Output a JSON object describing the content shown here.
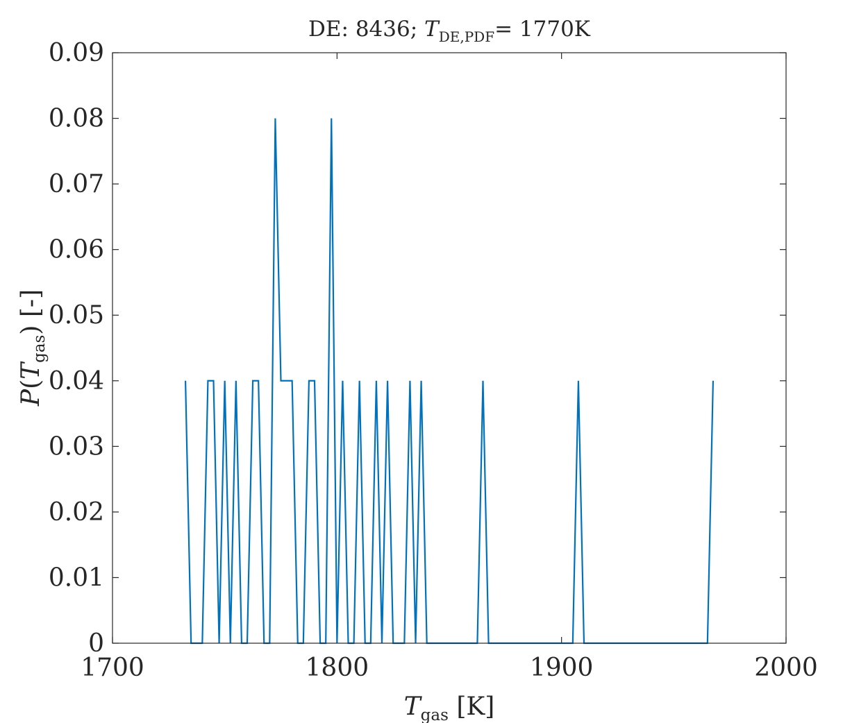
{
  "chart_data": {
    "type": "line",
    "title_parts": {
      "prefix": "DE: 8436; ",
      "var": "T",
      "sub": "DE,PDF",
      "suffix": "= 1770K"
    },
    "xlabel_parts": {
      "var": "T",
      "sub": "gas",
      "unit": " [K]"
    },
    "ylabel_parts": {
      "prefix": "P(",
      "var": "T",
      "sub": "gas",
      "suffix": ") [-]"
    },
    "xlim": [
      1700,
      2000
    ],
    "ylim": [
      0,
      0.09
    ],
    "xticks": [
      1700,
      1800,
      1900,
      2000
    ],
    "xtick_labels": [
      "1700",
      "1800",
      "1900",
      "2000"
    ],
    "yticks": [
      0,
      0.01,
      0.02,
      0.03,
      0.04,
      0.05,
      0.06,
      0.07,
      0.08,
      0.09
    ],
    "ytick_labels": [
      "0",
      "0.01",
      "0.02",
      "0.03",
      "0.04",
      "0.05",
      "0.06",
      "0.07",
      "0.08",
      "0.09"
    ],
    "grid": false,
    "series": [
      {
        "color": "#0072BD",
        "x": [
          1732.5,
          1735,
          1740,
          1742.5,
          1745,
          1747.5,
          1750,
          1752.5,
          1755,
          1757.5,
          1760,
          1762.5,
          1765,
          1767.5,
          1770,
          1772.5,
          1775,
          1777.5,
          1780,
          1782.5,
          1785,
          1787.5,
          1790,
          1792.5,
          1795,
          1797.5,
          1800,
          1802.5,
          1805,
          1807.5,
          1810,
          1812.5,
          1815,
          1817.5,
          1820,
          1822.5,
          1825,
          1827.5,
          1830,
          1832.5,
          1835,
          1837.5,
          1840,
          1842.5,
          1845,
          1860,
          1862.5,
          1865,
          1867.5,
          1870,
          1905,
          1907.5,
          1910,
          1912.5,
          1962.5,
          1965,
          1967.5
        ],
        "y": [
          0.04,
          0,
          0,
          0.04,
          0.04,
          0,
          0.04,
          0,
          0.04,
          0,
          0,
          0.04,
          0.04,
          0,
          0,
          0.08,
          0.04,
          0.04,
          0.04,
          0,
          0,
          0.04,
          0.04,
          0,
          0,
          0.08,
          0,
          0.04,
          0,
          0,
          0.04,
          0,
          0,
          0.04,
          0,
          0.04,
          0,
          0,
          0,
          0.04,
          0,
          0.04,
          0,
          0,
          0,
          0,
          0,
          0.04,
          0,
          0,
          0,
          0.04,
          0,
          0,
          0,
          0,
          0.04
        ]
      }
    ]
  }
}
